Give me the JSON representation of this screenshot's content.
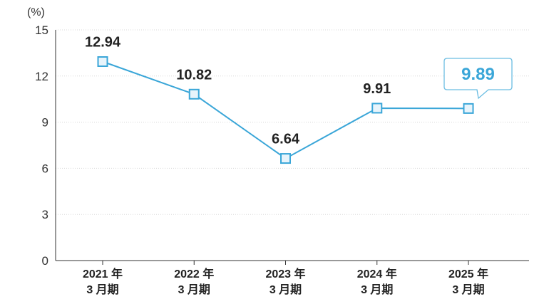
{
  "chart_data": {
    "type": "line",
    "unit_label": "(%)",
    "title": "",
    "xlabel": "",
    "ylabel": "",
    "ylim": [
      0,
      15
    ],
    "yticks": [
      0,
      3,
      6,
      9,
      12,
      15
    ],
    "grid": true,
    "categories": [
      {
        "line1": "2021 年",
        "line2": "3 月期"
      },
      {
        "line1": "2022 年",
        "line2": "3 月期"
      },
      {
        "line1": "2023 年",
        "line2": "3 月期"
      },
      {
        "line1": "2024 年",
        "line2": "3 月期"
      },
      {
        "line1": "2025 年",
        "line2": "3 月期"
      }
    ],
    "values": [
      12.94,
      10.82,
      6.64,
      9.91,
      9.89
    ],
    "labels": [
      "12.94",
      "10.82",
      "6.64",
      "9.91",
      "9.89"
    ],
    "highlight_index": 4,
    "colors": {
      "line": "#3aa6d8",
      "marker_fill": "#e8f4fb",
      "callout_border": "#6bbde2",
      "callout_text": "#3aa6d8",
      "axis": "#333333",
      "grid": "#d8d8d8"
    }
  }
}
